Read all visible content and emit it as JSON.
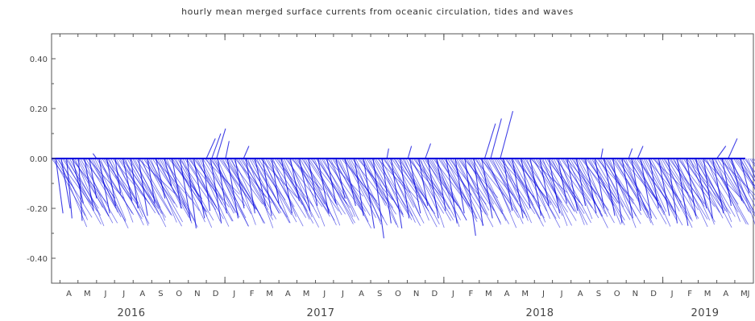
{
  "chart_data": {
    "type": "stick-vector",
    "title": "hourly mean merged surface currents from oceanic circulation, tides and waves",
    "xlabel": "",
    "ylabel": "",
    "x_start": "2016-03-18",
    "x_end": "2019-06-01",
    "ylim": [
      -0.5,
      0.5
    ],
    "y_ticks": [
      0.4,
      0.2,
      0.0,
      -0.2,
      -0.4
    ],
    "y_tick_labels": [
      "0.40",
      "0.20",
      "0.00",
      "-0.20",
      "-0.40"
    ],
    "month_labels": [
      "A",
      "M",
      "J",
      "J",
      "A",
      "S",
      "O",
      "N",
      "D",
      "J",
      "F",
      "M",
      "A",
      "M",
      "J",
      "J",
      "A",
      "S",
      "O",
      "N",
      "D",
      "J",
      "F",
      "M",
      "A",
      "M",
      "J",
      "J",
      "A",
      "S",
      "O",
      "N",
      "D",
      "J",
      "F",
      "M",
      "A",
      "M",
      "J"
    ],
    "year_labels": [
      "2016",
      "2017",
      "2018",
      "2019"
    ],
    "series_color": "#0000dd",
    "grid": false,
    "sticks": [
      {
        "t": "2016-03-25",
        "u": 0.04,
        "v": -0.22
      },
      {
        "t": "2016-04-03",
        "u": 0.05,
        "v": -0.2
      },
      {
        "t": "2016-04-12",
        "u": 0.03,
        "v": -0.24
      },
      {
        "t": "2016-04-22",
        "u": 0.06,
        "v": -0.18
      },
      {
        "t": "2016-05-02",
        "u": 0.02,
        "v": -0.25
      },
      {
        "t": "2016-05-12",
        "u": 0.05,
        "v": -0.21
      },
      {
        "t": "2016-05-20",
        "u": 0.04,
        "v": -0.16
      },
      {
        "t": "2016-06-01",
        "u": -0.02,
        "v": 0.02
      },
      {
        "t": "2016-06-05",
        "u": 0.06,
        "v": -0.22
      },
      {
        "t": "2016-06-18",
        "u": 0.05,
        "v": -0.19
      },
      {
        "t": "2016-07-02",
        "u": 0.03,
        "v": -0.14
      },
      {
        "t": "2016-07-15",
        "u": 0.05,
        "v": -0.17
      },
      {
        "t": "2016-07-28",
        "u": 0.04,
        "v": -0.2
      },
      {
        "t": "2016-08-10",
        "u": 0.05,
        "v": -0.23
      },
      {
        "t": "2016-08-25",
        "u": 0.04,
        "v": -0.18
      },
      {
        "t": "2016-09-08",
        "u": 0.05,
        "v": -0.16
      },
      {
        "t": "2016-09-22",
        "u": 0.04,
        "v": -0.11
      },
      {
        "t": "2016-10-05",
        "u": 0.05,
        "v": -0.2
      },
      {
        "t": "2016-10-18",
        "u": 0.06,
        "v": -0.25
      },
      {
        "t": "2016-10-30",
        "u": 0.05,
        "v": -0.28
      },
      {
        "t": "2016-11-10",
        "u": 0.06,
        "v": -0.24
      },
      {
        "t": "2016-11-25",
        "u": 0.04,
        "v": -0.21
      },
      {
        "t": "2016-12-08",
        "u": 0.06,
        "v": -0.26
      },
      {
        "t": "2016-12-20",
        "u": 0.05,
        "v": -0.22
      },
      {
        "t": "2016-12-01",
        "u": 0.05,
        "v": 0.08
      },
      {
        "t": "2016-12-10",
        "u": 0.05,
        "v": 0.1
      },
      {
        "t": "2016-12-18",
        "u": 0.05,
        "v": 0.12
      },
      {
        "t": "2017-01-02",
        "u": 0.02,
        "v": 0.07
      },
      {
        "t": "2017-01-05",
        "u": 0.06,
        "v": -0.24
      },
      {
        "t": "2017-01-18",
        "u": 0.05,
        "v": -0.2
      },
      {
        "t": "2017-02-01",
        "u": 0.03,
        "v": 0.05
      },
      {
        "t": "2017-02-05",
        "u": 0.05,
        "v": -0.22
      },
      {
        "t": "2017-02-20",
        "u": 0.06,
        "v": -0.19
      },
      {
        "t": "2017-03-05",
        "u": 0.05,
        "v": -0.23
      },
      {
        "t": "2017-03-20",
        "u": 0.04,
        "v": -0.18
      },
      {
        "t": "2017-04-05",
        "u": 0.06,
        "v": -0.22
      },
      {
        "t": "2017-04-20",
        "u": 0.05,
        "v": -0.17
      },
      {
        "t": "2017-05-05",
        "u": 0.06,
        "v": -0.21
      },
      {
        "t": "2017-05-20",
        "u": 0.05,
        "v": -0.19
      },
      {
        "t": "2017-06-05",
        "u": 0.06,
        "v": -0.22
      },
      {
        "t": "2017-06-20",
        "u": 0.05,
        "v": -0.18
      },
      {
        "t": "2017-07-05",
        "u": 0.05,
        "v": -0.16
      },
      {
        "t": "2017-07-20",
        "u": 0.06,
        "v": -0.19
      },
      {
        "t": "2017-08-05",
        "u": 0.05,
        "v": -0.23
      },
      {
        "t": "2017-08-20",
        "u": 0.06,
        "v": -0.28
      },
      {
        "t": "2017-09-05",
        "u": 0.06,
        "v": -0.32
      },
      {
        "t": "2017-09-20",
        "u": 0.05,
        "v": -0.26
      },
      {
        "t": "2017-09-28",
        "u": 0.01,
        "v": 0.04
      },
      {
        "t": "2017-10-05",
        "u": 0.06,
        "v": -0.28
      },
      {
        "t": "2017-10-20",
        "u": 0.05,
        "v": -0.24
      },
      {
        "t": "2017-11-02",
        "u": 0.02,
        "v": 0.05
      },
      {
        "t": "2017-11-05",
        "u": 0.06,
        "v": -0.22
      },
      {
        "t": "2017-11-20",
        "u": 0.05,
        "v": -0.19
      },
      {
        "t": "2017-12-01",
        "u": 0.03,
        "v": 0.06
      },
      {
        "t": "2017-12-05",
        "u": 0.06,
        "v": -0.24
      },
      {
        "t": "2017-12-20",
        "u": 0.05,
        "v": -0.21
      },
      {
        "t": "2018-01-05",
        "u": 0.06,
        "v": -0.26
      },
      {
        "t": "2018-01-20",
        "u": 0.05,
        "v": -0.22
      },
      {
        "t": "2018-02-05",
        "u": 0.06,
        "v": -0.31
      },
      {
        "t": "2018-02-20",
        "u": 0.05,
        "v": -0.27
      },
      {
        "t": "2018-03-05",
        "u": 0.06,
        "v": -0.24
      },
      {
        "t": "2018-03-10",
        "u": 0.06,
        "v": 0.14
      },
      {
        "t": "2018-03-20",
        "u": 0.06,
        "v": 0.16
      },
      {
        "t": "2018-04-05",
        "u": 0.07,
        "v": 0.19
      },
      {
        "t": "2018-04-10",
        "u": 0.05,
        "v": -0.21
      },
      {
        "t": "2018-04-25",
        "u": 0.06,
        "v": -0.24
      },
      {
        "t": "2018-05-10",
        "u": 0.05,
        "v": -0.2
      },
      {
        "t": "2018-05-25",
        "u": 0.06,
        "v": -0.23
      },
      {
        "t": "2018-06-10",
        "u": 0.05,
        "v": -0.19
      },
      {
        "t": "2018-06-25",
        "u": 0.06,
        "v": -0.22
      },
      {
        "t": "2018-07-10",
        "u": 0.05,
        "v": -0.18
      },
      {
        "t": "2018-07-25",
        "u": 0.06,
        "v": -0.21
      },
      {
        "t": "2018-08-10",
        "u": 0.05,
        "v": -0.19
      },
      {
        "t": "2018-08-25",
        "u": 0.06,
        "v": -0.22
      },
      {
        "t": "2018-09-10",
        "u": 0.05,
        "v": -0.2
      },
      {
        "t": "2018-09-20",
        "u": 0.01,
        "v": 0.04
      },
      {
        "t": "2018-09-25",
        "u": 0.06,
        "v": -0.23
      },
      {
        "t": "2018-10-10",
        "u": 0.05,
        "v": -0.26
      },
      {
        "t": "2018-10-25",
        "u": 0.06,
        "v": -0.24
      },
      {
        "t": "2018-11-05",
        "u": 0.02,
        "v": 0.04
      },
      {
        "t": "2018-11-10",
        "u": 0.05,
        "v": -0.21
      },
      {
        "t": "2018-11-20",
        "u": 0.03,
        "v": 0.05
      },
      {
        "t": "2018-11-25",
        "u": 0.06,
        "v": -0.24
      },
      {
        "t": "2018-12-10",
        "u": 0.05,
        "v": -0.2
      },
      {
        "t": "2018-12-25",
        "u": 0.06,
        "v": -0.23
      },
      {
        "t": "2019-01-10",
        "u": 0.05,
        "v": -0.26
      },
      {
        "t": "2019-01-25",
        "u": 0.06,
        "v": -0.27
      },
      {
        "t": "2019-02-10",
        "u": 0.05,
        "v": -0.23
      },
      {
        "t": "2019-02-25",
        "u": 0.06,
        "v": -0.2
      },
      {
        "t": "2019-03-10",
        "u": 0.05,
        "v": -0.24
      },
      {
        "t": "2019-03-25",
        "u": 0.06,
        "v": -0.22
      },
      {
        "t": "2019-04-01",
        "u": 0.05,
        "v": 0.05
      },
      {
        "t": "2019-04-10",
        "u": 0.05,
        "v": -0.19
      },
      {
        "t": "2019-04-20",
        "u": 0.05,
        "v": 0.08
      },
      {
        "t": "2019-04-25",
        "u": 0.06,
        "v": -0.17
      },
      {
        "t": "2019-05-10",
        "u": 0.05,
        "v": -0.14
      }
    ]
  }
}
